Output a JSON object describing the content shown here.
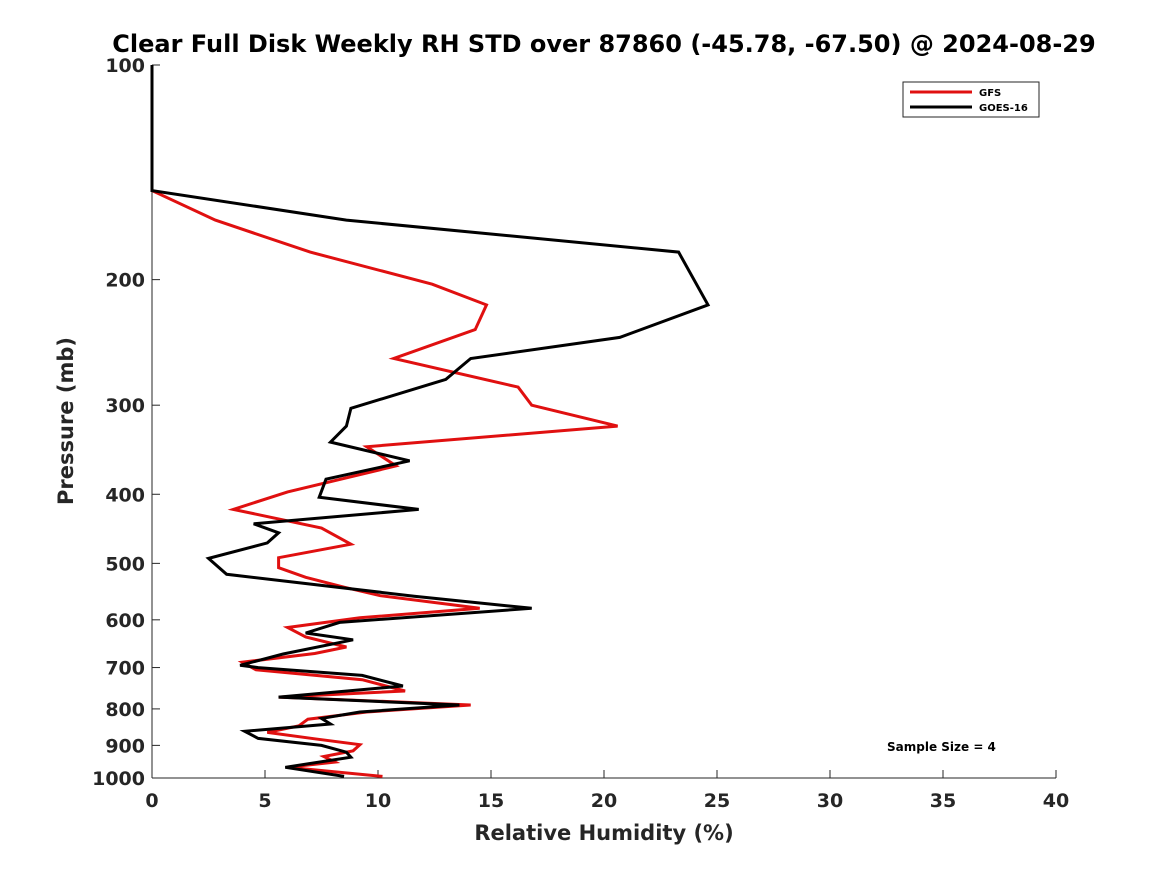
{
  "chart_data": {
    "type": "line",
    "title": "Clear Full Disk Weekly RH STD over 87860 (-45.78, -67.50) @ 2024-08-29",
    "xlabel": "Relative Humidity (%)",
    "ylabel": "Pressure (mb)",
    "xlim": [
      0,
      40
    ],
    "ylim": [
      100,
      1000
    ],
    "y_scale": "log",
    "y_reversed": true,
    "grid": false,
    "legend_position": "top-right",
    "x_ticks": [
      "0",
      "5",
      "10",
      "15",
      "20",
      "25",
      "30",
      "35",
      "40"
    ],
    "y_ticks": [
      "100",
      "200",
      "300",
      "400",
      "500",
      "600",
      "700",
      "800",
      "900",
      "1000"
    ],
    "annotation": "Sample Size = 4",
    "series": [
      {
        "name": "GFS",
        "color": "#e01010",
        "points": [
          [
            0,
            100
          ],
          [
            0,
            150
          ],
          [
            2.8,
            165
          ],
          [
            7,
            183
          ],
          [
            12.4,
            203
          ],
          [
            14.8,
            217
          ],
          [
            14.3,
            235
          ],
          [
            10.7,
            258
          ],
          [
            16.2,
            283
          ],
          [
            16.8,
            300
          ],
          [
            20.6,
            321
          ],
          [
            9.5,
            343
          ],
          [
            10.8,
            365
          ],
          [
            6,
            397
          ],
          [
            3.6,
            420
          ],
          [
            7.5,
            446
          ],
          [
            8.8,
            470
          ],
          [
            5.6,
            491
          ],
          [
            5.6,
            507
          ],
          [
            6.8,
            523
          ],
          [
            8.5,
            540
          ],
          [
            10.1,
            555
          ],
          [
            14.5,
            578
          ],
          [
            9.2,
            596
          ],
          [
            6,
            615
          ],
          [
            6.8,
            634
          ],
          [
            8.6,
            655
          ],
          [
            7.2,
            669
          ],
          [
            4,
            688
          ],
          [
            4.6,
            705
          ],
          [
            9.3,
            728
          ],
          [
            11.2,
            755
          ],
          [
            5.6,
            770
          ],
          [
            14.1,
            790
          ],
          [
            9.5,
            808
          ],
          [
            6.9,
            827
          ],
          [
            6.5,
            845
          ],
          [
            5.1,
            863
          ],
          [
            7.2,
            881
          ],
          [
            9.2,
            898
          ],
          [
            8.9,
            916
          ],
          [
            7.6,
            933
          ],
          [
            8.1,
            950
          ],
          [
            6,
            966
          ],
          [
            10.2,
            995
          ]
        ]
      },
      {
        "name": "GOES-16",
        "color": "#000000",
        "points": [
          [
            0,
            100
          ],
          [
            0,
            150
          ],
          [
            8.6,
            165
          ],
          [
            23.3,
            183
          ],
          [
            24.6,
            217
          ],
          [
            20.7,
            241
          ],
          [
            14.1,
            258
          ],
          [
            13,
            276
          ],
          [
            8.8,
            303
          ],
          [
            8.6,
            321
          ],
          [
            7.9,
            338
          ],
          [
            11.4,
            359
          ],
          [
            7.7,
            381
          ],
          [
            7.4,
            404
          ],
          [
            11.8,
            420
          ],
          [
            4.5,
            440
          ],
          [
            5.6,
            453
          ],
          [
            5.1,
            468
          ],
          [
            2.5,
            492
          ],
          [
            3.3,
            518
          ],
          [
            11.6,
            556
          ],
          [
            16.8,
            578
          ],
          [
            8.3,
            605
          ],
          [
            6.8,
            626
          ],
          [
            8.9,
            640
          ],
          [
            5.8,
            670
          ],
          [
            3.9,
            695
          ],
          [
            4.7,
            700
          ],
          [
            9.3,
            718
          ],
          [
            11.1,
            743
          ],
          [
            5.6,
            770
          ],
          [
            13.6,
            790
          ],
          [
            9.2,
            808
          ],
          [
            7.5,
            825
          ],
          [
            7.9,
            840
          ],
          [
            4.1,
            860
          ],
          [
            4.7,
            880
          ],
          [
            7.5,
            900
          ],
          [
            8.6,
            920
          ],
          [
            8.8,
            935
          ],
          [
            5.9,
            966
          ],
          [
            8.5,
            995
          ]
        ]
      }
    ]
  }
}
